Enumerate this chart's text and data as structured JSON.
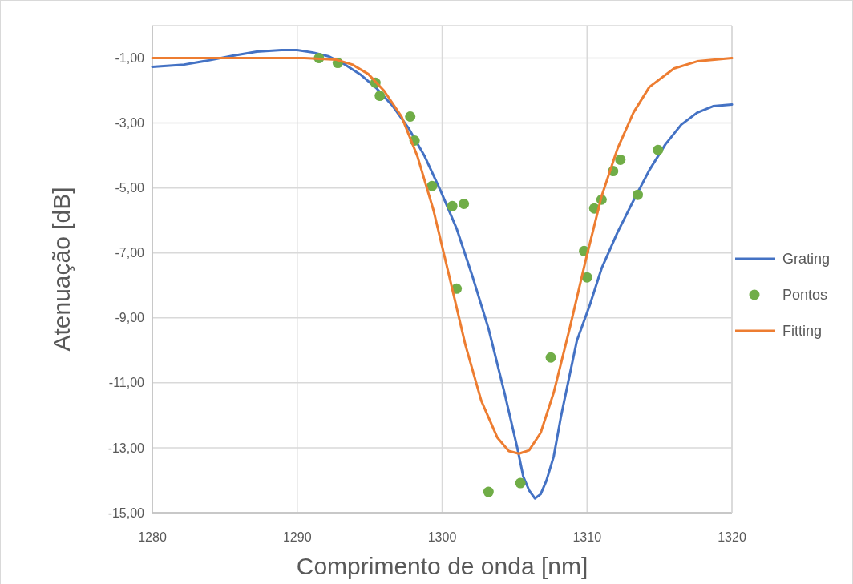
{
  "chart_data": {
    "type": "line",
    "xlabel": "Comprimento de onda [nm]",
    "ylabel": "Atenuação [dB]",
    "xlim": [
      1280,
      1320
    ],
    "xticks": [
      1280,
      1290,
      1300,
      1310,
      1320
    ],
    "ylim": [
      -15,
      0
    ],
    "yticks": [
      {
        "value": -1,
        "label": "-1,00"
      },
      {
        "value": -3,
        "label": "-3,00"
      },
      {
        "value": -5,
        "label": "-5,00"
      },
      {
        "value": -7,
        "label": "-7,00"
      },
      {
        "value": -9,
        "label": "-9,00"
      },
      {
        "value": -11,
        "label": "-11,00"
      },
      {
        "value": -13,
        "label": "-13,00"
      },
      {
        "value": -15,
        "label": "-15,00"
      }
    ],
    "grid": true,
    "legend": "right",
    "series": [
      {
        "name": "Grating",
        "color": "#4472c4",
        "marker": "none",
        "x": [
          1280,
          1282.2,
          1283.9,
          1285.5,
          1287.2,
          1288.9,
          1290,
          1291.1,
          1292.2,
          1293.3,
          1294.4,
          1295.5,
          1296.6,
          1297.7,
          1298.8,
          1299.9,
          1301,
          1302.1,
          1303.2,
          1304.3,
          1305.2,
          1305.6,
          1306,
          1306.4,
          1306.8,
          1307.2,
          1307.7,
          1308.2,
          1308.8,
          1309.3,
          1310.2,
          1311,
          1312.1,
          1313.2,
          1314.3,
          1315.4,
          1316.5,
          1317.6,
          1318.7,
          1320
        ],
        "values": [
          -1.27,
          -1.2,
          -1.07,
          -0.93,
          -0.8,
          -0.75,
          -0.75,
          -0.83,
          -0.95,
          -1.2,
          -1.52,
          -1.94,
          -2.48,
          -3.17,
          -4.03,
          -5.09,
          -6.25,
          -7.73,
          -9.33,
          -11.3,
          -13.03,
          -13.89,
          -14.31,
          -14.56,
          -14.43,
          -14.01,
          -13.27,
          -12.04,
          -10.76,
          -9.7,
          -8.59,
          -7.48,
          -6.37,
          -5.39,
          -4.45,
          -3.66,
          -3.05,
          -2.68,
          -2.48,
          -2.43
        ]
      },
      {
        "name": "Pontos",
        "type": "scatter",
        "color": "#70ad47",
        "marker": "circle",
        "x": [
          1291.5,
          1292.8,
          1295.4,
          1295.7,
          1297.8,
          1298.1,
          1299.3,
          1300.7,
          1301.5,
          1301,
          1303.2,
          1305.4,
          1307.5,
          1309.8,
          1310,
          1310.5,
          1311,
          1311.8,
          1312.3,
          1313.5,
          1314.9
        ],
        "values": [
          -1,
          -1.15,
          -1.76,
          -2.16,
          -2.8,
          -3.54,
          -4.94,
          -5.56,
          -5.49,
          -8.1,
          -14.36,
          -14.09,
          -10.22,
          -6.94,
          -7.75,
          -5.63,
          -5.36,
          -4.48,
          -4.13,
          -5.21,
          -3.83
        ]
      },
      {
        "name": "Fitting",
        "color": "#ed7d31",
        "marker": "none",
        "x": [
          1280,
          1290.5,
          1292.7,
          1293.8,
          1294.9,
          1296,
          1297.2,
          1298.3,
          1299.4,
          1300.5,
          1301.6,
          1302.7,
          1303.8,
          1304.6,
          1305.3,
          1306,
          1306.8,
          1307.7,
          1308.8,
          1309.9,
          1311,
          1312.1,
          1313.2,
          1314.3,
          1316,
          1317.6,
          1320
        ],
        "values": [
          -1,
          -1,
          -1.05,
          -1.2,
          -1.49,
          -2.01,
          -2.8,
          -4.03,
          -5.68,
          -7.73,
          -9.82,
          -11.55,
          -12.68,
          -13.1,
          -13.18,
          -13.08,
          -12.54,
          -11.3,
          -9.33,
          -7.24,
          -5.26,
          -3.79,
          -2.68,
          -1.89,
          -1.32,
          -1.1,
          -1
        ]
      }
    ]
  }
}
